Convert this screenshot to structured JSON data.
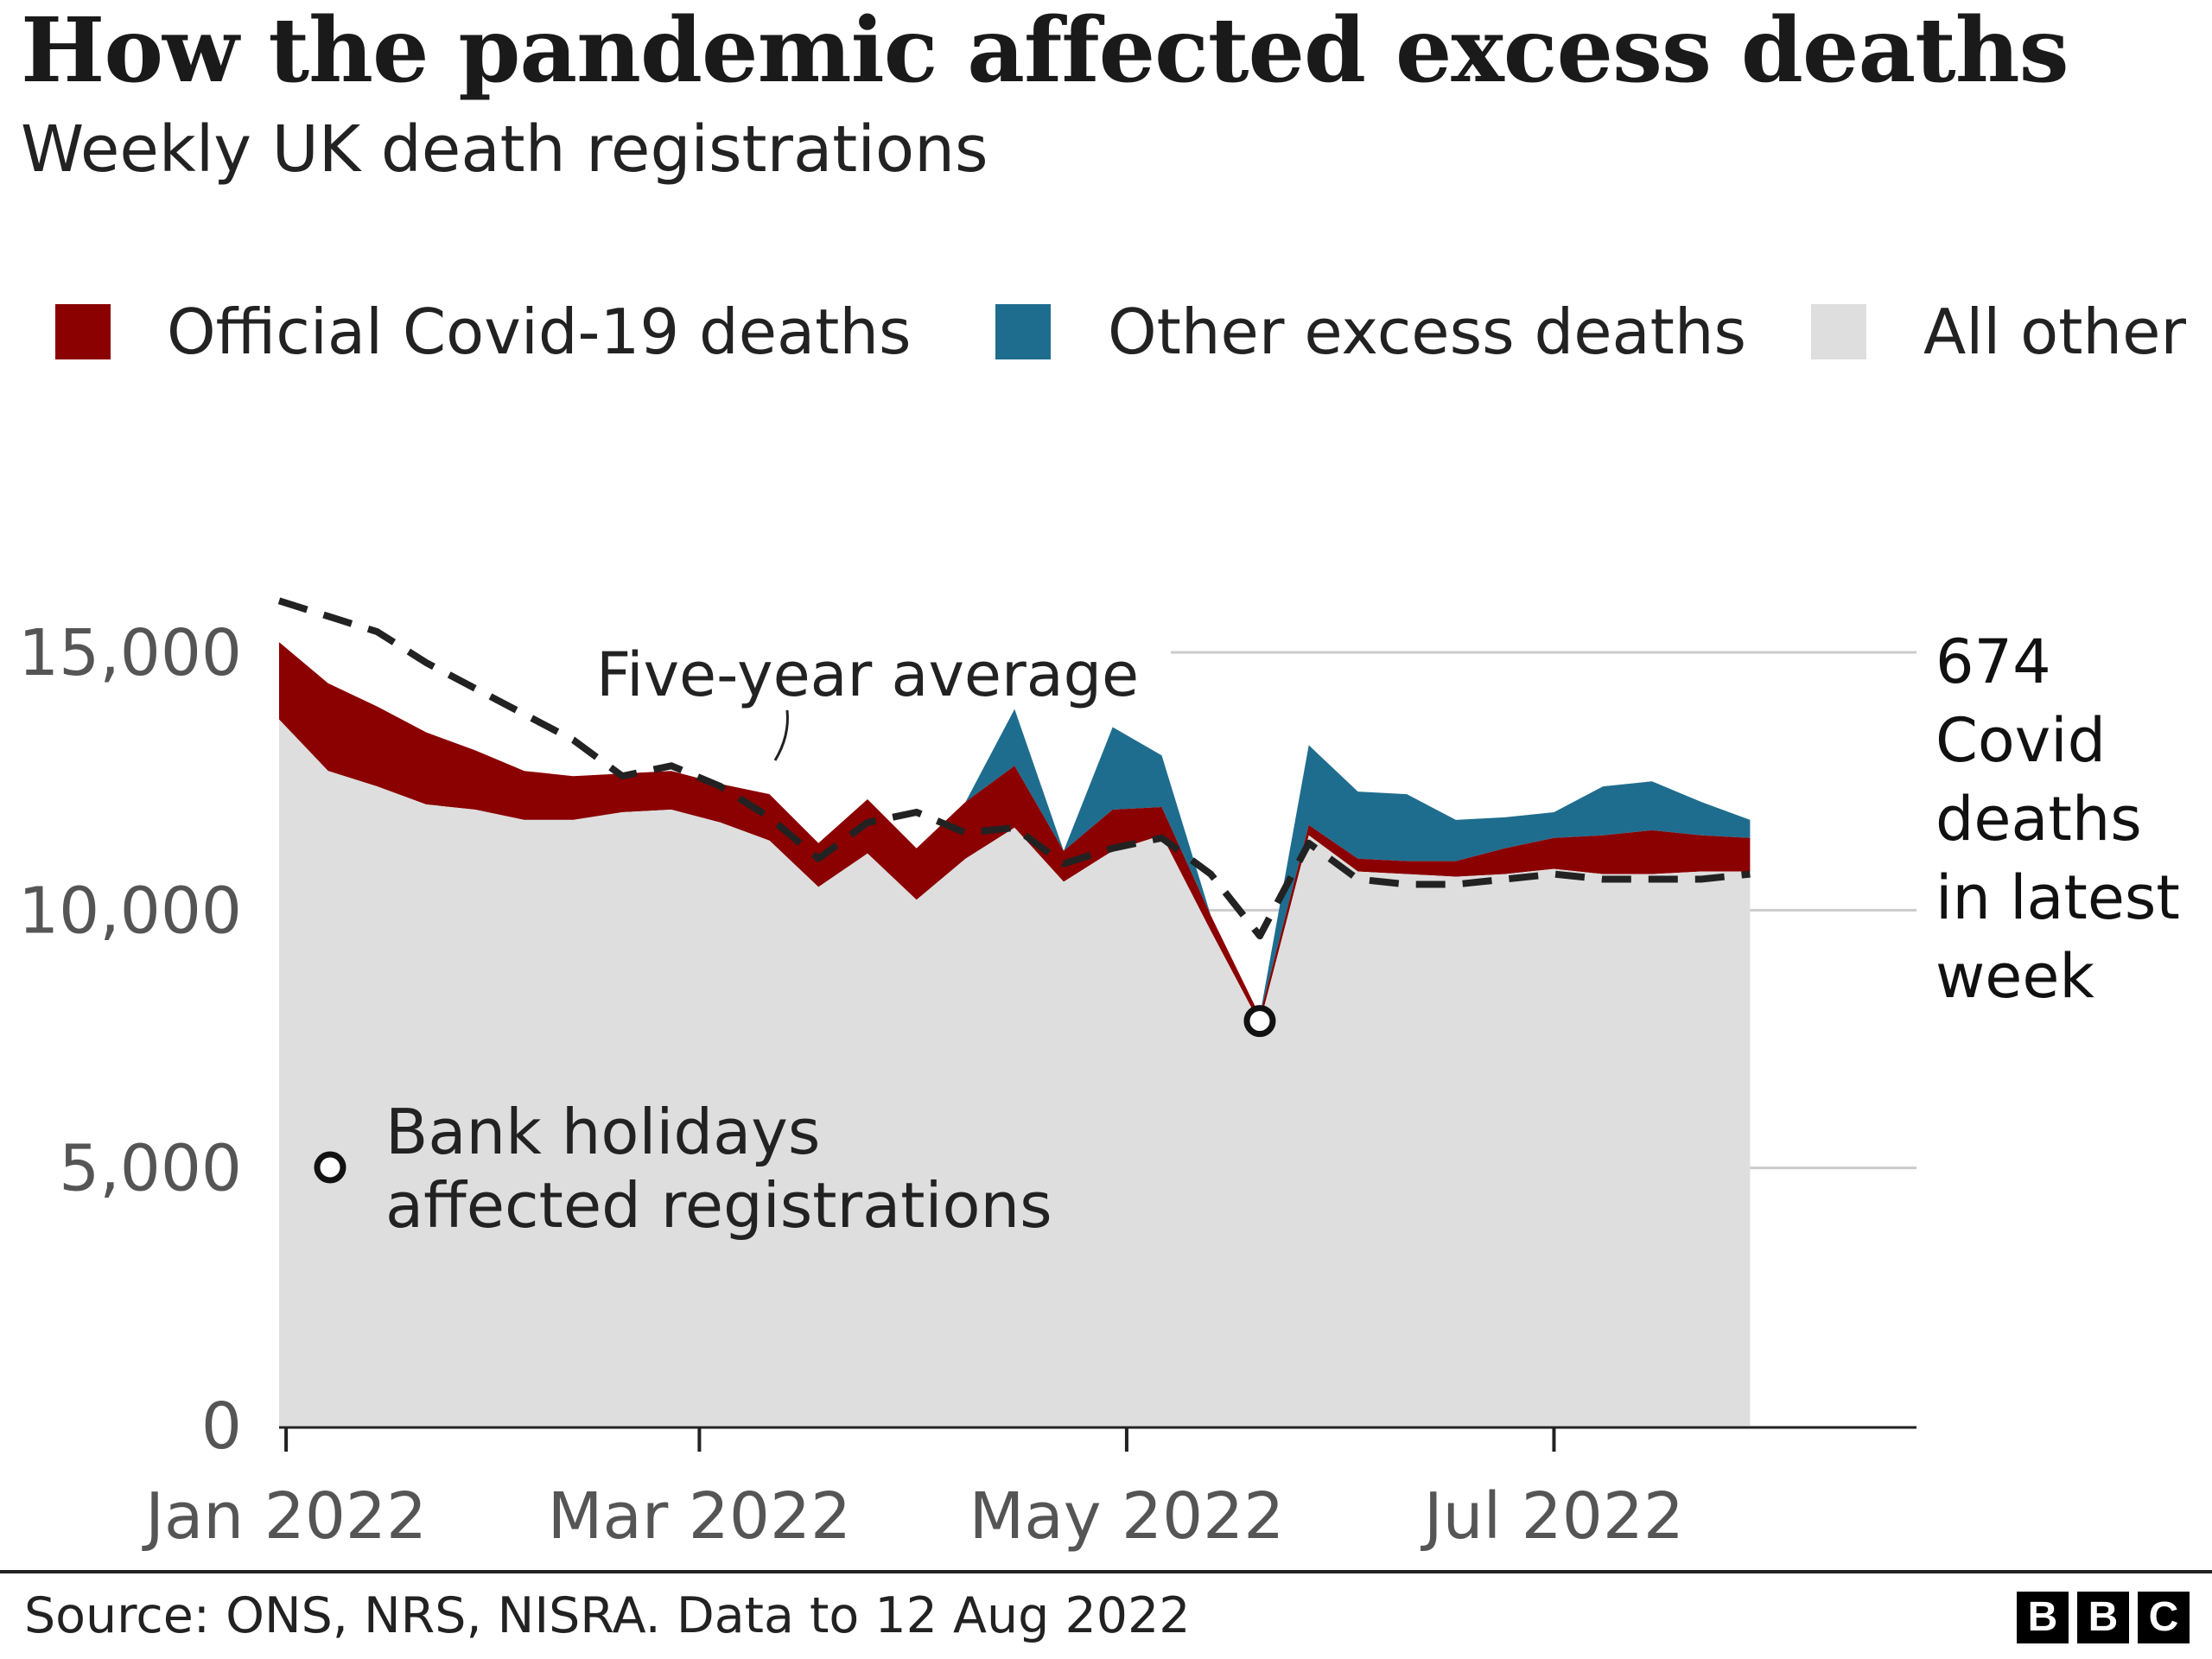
{
  "title": "How the pandemic affected excess deaths",
  "subtitle": "Weekly UK death registrations",
  "source": "Source: ONS, NRS, NISRA. Data to 12 Aug 2022",
  "logo": [
    "B",
    "B",
    "C"
  ],
  "colors": {
    "covid": "#8b0000",
    "other_excess": "#1f6d8e",
    "all_other": "#dedede",
    "average_line": "#222222",
    "grid": "#cccccc"
  },
  "chart_data": {
    "type": "area",
    "stacked": true,
    "legend": [
      {
        "name": "Official Covid-19 deaths",
        "color": "#8b0000"
      },
      {
        "name": "Other excess deaths",
        "color": "#1f6d8e"
      },
      {
        "name": "All other",
        "color": "#dedede"
      }
    ],
    "legend_position": "top",
    "y_ticks": [
      "0",
      "5,000",
      "10,000",
      "15,000"
    ],
    "y_tick_values": [
      0,
      5000,
      10000,
      15000
    ],
    "ylim": [
      0,
      15000
    ],
    "x_ticks": [
      {
        "label": "Jan 2022",
        "date": "2022-01-01"
      },
      {
        "label": "Mar 2022",
        "date": "2022-03-01"
      },
      {
        "label": "May 2022",
        "date": "2022-05-01"
      },
      {
        "label": "Jul 2022",
        "date": "2022-07-01"
      }
    ],
    "xlim": [
      "2021-12-31",
      "2022-08-22"
    ],
    "grid": "horizontal",
    "weeks": [
      {
        "date": "2021-12-31",
        "all_other": 13700,
        "covid": 1500,
        "other_excess": 0,
        "average": 16000
      },
      {
        "date": "2022-01-07",
        "all_other": 12700,
        "covid": 1700,
        "other_excess": 0,
        "average": 15700
      },
      {
        "date": "2022-01-14",
        "all_other": 12400,
        "covid": 1550,
        "other_excess": 0,
        "average": 15400
      },
      {
        "date": "2022-01-21",
        "all_other": 12050,
        "covid": 1400,
        "other_excess": 0,
        "average": 14800
      },
      {
        "date": "2022-01-28",
        "all_other": 11950,
        "covid": 1150,
        "other_excess": 0,
        "average": 14300
      },
      {
        "date": "2022-02-04",
        "all_other": 11750,
        "covid": 950,
        "other_excess": 0,
        "average": 13800
      },
      {
        "date": "2022-02-11",
        "all_other": 11750,
        "covid": 850,
        "other_excess": 0,
        "average": 13300
      },
      {
        "date": "2022-02-18",
        "all_other": 11900,
        "covid": 750,
        "other_excess": 0,
        "average": 12600
      },
      {
        "date": "2022-02-25",
        "all_other": 11950,
        "covid": 750,
        "other_excess": 0,
        "average": 12800
      },
      {
        "date": "2022-03-04",
        "all_other": 11700,
        "covid": 750,
        "other_excess": 0,
        "average": 12400
      },
      {
        "date": "2022-03-11",
        "all_other": 11350,
        "covid": 900,
        "other_excess": 0,
        "average": 11800
      },
      {
        "date": "2022-03-18",
        "all_other": 10450,
        "covid": 850,
        "other_excess": 0,
        "average": 11000
      },
      {
        "date": "2022-03-25",
        "all_other": 11100,
        "covid": 1050,
        "other_excess": 0,
        "average": 11700
      },
      {
        "date": "2022-04-01",
        "all_other": 10200,
        "covid": 1000,
        "other_excess": 0,
        "average": 11900
      },
      {
        "date": "2022-04-08",
        "all_other": 11000,
        "covid": 1100,
        "other_excess": 0,
        "average": 11500
      },
      {
        "date": "2022-04-15",
        "all_other": 11600,
        "covid": 1200,
        "other_excess": 1100,
        "average": 11600
      },
      {
        "date": "2022-04-22",
        "all_other": 10550,
        "covid": 600,
        "other_excess": 0,
        "average": 10900
      },
      {
        "date": "2022-04-29",
        "all_other": 11150,
        "covid": 800,
        "other_excess": 1600,
        "average": 11200
      },
      {
        "date": "2022-05-06",
        "all_other": 11450,
        "covid": 550,
        "other_excess": 1000,
        "average": 11400
      },
      {
        "date": "2022-05-13",
        "all_other": 9600,
        "covid": 300,
        "other_excess": 0,
        "average": 10700
      },
      {
        "date": "2022-05-20",
        "all_other": 7800,
        "covid": 150,
        "other_excess": 0,
        "average": 9500
      },
      {
        "date": "2022-05-27",
        "all_other": 11450,
        "covid": 200,
        "other_excess": 1550,
        "average": 11300
      },
      {
        "date": "2022-06-03",
        "all_other": 10750,
        "covid": 250,
        "other_excess": 1300,
        "average": 10600
      },
      {
        "date": "2022-06-10",
        "all_other": 10700,
        "covid": 250,
        "other_excess": 1300,
        "average": 10500
      },
      {
        "date": "2022-06-17",
        "all_other": 10650,
        "covid": 300,
        "other_excess": 800,
        "average": 10500
      },
      {
        "date": "2022-06-24",
        "all_other": 10700,
        "covid": 500,
        "other_excess": 600,
        "average": 10600
      },
      {
        "date": "2022-07-01",
        "all_other": 10800,
        "covid": 600,
        "other_excess": 500,
        "average": 10700
      },
      {
        "date": "2022-07-08",
        "all_other": 10700,
        "covid": 750,
        "other_excess": 950,
        "average": 10600
      },
      {
        "date": "2022-07-15",
        "all_other": 10700,
        "covid": 850,
        "other_excess": 950,
        "average": 10600
      },
      {
        "date": "2022-07-22",
        "all_other": 10750,
        "covid": 700,
        "other_excess": 650,
        "average": 10600
      },
      {
        "date": "2022-07-29",
        "all_other": 10750,
        "covid": 650,
        "other_excess": 350,
        "average": 10700
      }
    ],
    "average_label": "Five-year average",
    "bank_holiday_marker": {
      "date": "2022-05-20",
      "value": 7850
    },
    "bank_holiday_note": [
      "Bank holidays",
      "affected registrations"
    ],
    "latest_week_note": [
      "674",
      "Covid",
      "deaths",
      "in latest",
      "week"
    ]
  }
}
